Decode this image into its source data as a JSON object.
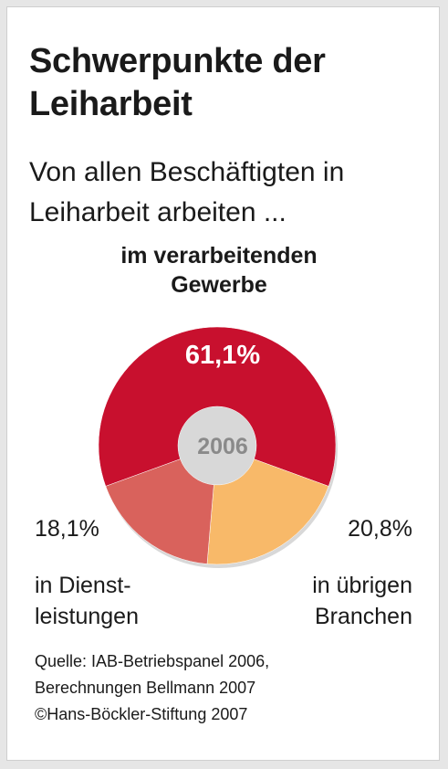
{
  "title": [
    "Schwerpunkte der",
    "Leiharbeit"
  ],
  "subtitle": [
    "Von allen Beschäftigten in",
    "Leiharbeit arbeiten ..."
  ],
  "chart_data": {
    "type": "pie",
    "center_label": "2006",
    "slices": [
      {
        "label": "im verarbeitenden Gewerbe",
        "label_lines": [
          "im verarbeitenden",
          "Gewerbe"
        ],
        "value": 61.1,
        "value_text": "61,1%",
        "color": "#c8102e"
      },
      {
        "label": "in übrigen Branchen",
        "label_lines": [
          "in übrigen",
          "Branchen"
        ],
        "value": 20.8,
        "value_text": "20,8%",
        "color": "#f8b969"
      },
      {
        "label": "in Dienstleistungen",
        "label_lines": [
          "in Dienst-",
          "leistungen"
        ],
        "value": 18.1,
        "value_text": "18,1%",
        "color": "#d9625c"
      }
    ]
  },
  "source_lines": [
    "Quelle: IAB-Betriebspanel 2006,",
    "Berechnungen Bellmann 2007",
    "©Hans-Böckler-Stiftung 2007"
  ]
}
